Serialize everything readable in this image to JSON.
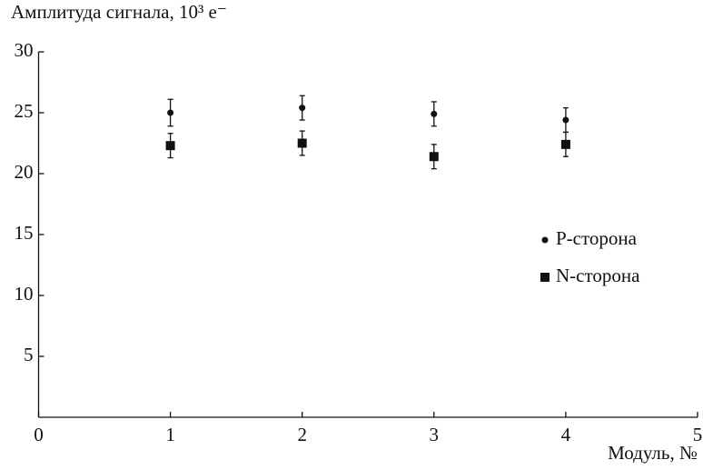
{
  "chart_data": {
    "type": "scatter",
    "ylabel": "Амплитуда сигнала, 10³ e⁻",
    "xlabel": "Модуль, №",
    "x": [
      1,
      2,
      3,
      4
    ],
    "series": [
      {
        "name": "P-сторона",
        "color": "#111111",
        "marker": "circle",
        "values": [
          25.0,
          25.4,
          24.9,
          24.4
        ],
        "errors": [
          1.1,
          1.0,
          1.0,
          1.0
        ]
      },
      {
        "name": "N-сторона",
        "color": "#111111",
        "marker": "square",
        "values": [
          22.3,
          22.5,
          21.4,
          22.4
        ],
        "errors": [
          1.0,
          1.0,
          1.0,
          1.0
        ]
      }
    ],
    "xlim": [
      0,
      5
    ],
    "xticks": [
      0,
      1,
      2,
      3,
      4,
      5
    ],
    "ylim": [
      0,
      30
    ],
    "yticks": [
      5,
      10,
      15,
      20,
      25,
      30
    ],
    "legend": "right"
  }
}
